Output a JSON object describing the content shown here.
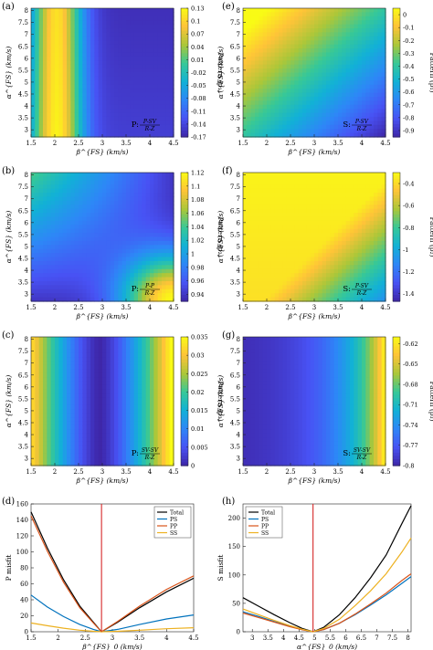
{
  "chart_data": [
    {
      "type": "heatmap",
      "panel_label": "(a)",
      "xlabel": "β^{FS} (km/s)",
      "ylabel": "α^{FS} (km/s)",
      "colorbar_label": "Pattern (p₁)",
      "annotation": {
        "prefix": "P:",
        "num": "P-SV",
        "den": "R-Z"
      },
      "xlim": [
        1.5,
        4.5
      ],
      "ylim": [
        2.7,
        8.1
      ],
      "xticks": [
        "1.5",
        "2",
        "2.5",
        "3",
        "3.5",
        "4",
        "4.5"
      ],
      "yticks": [
        "3",
        "3.5",
        "4",
        "4.5",
        "5",
        "5.5",
        "6",
        "6.5",
        "7",
        "7.5",
        "8"
      ],
      "colorbar_range": [
        -0.17,
        0.13
      ],
      "colorbar_ticks": [
        "0.13",
        "0.1",
        "0.07",
        "0.04",
        "0.01",
        "-0.02",
        "-0.05",
        "-0.08",
        "-0.11",
        "-0.14",
        "-0.17"
      ]
    },
    {
      "type": "heatmap",
      "panel_label": "(e)",
      "xlabel": "β^{FS} (km/s)",
      "ylabel": "α^{FS} (km/s)",
      "colorbar_label": "Pattern (p₁)",
      "annotation": {
        "prefix": "S:",
        "num": "P-SV",
        "den": "R-Z"
      },
      "xlim": [
        1.5,
        4.5
      ],
      "ylim": [
        2.7,
        8.1
      ],
      "xticks": [
        "1.5",
        "2",
        "2.5",
        "3",
        "3.5",
        "4",
        "4.5"
      ],
      "yticks": [
        "3",
        "3.5",
        "4",
        "4.5",
        "5",
        "5.5",
        "6",
        "6.5",
        "7",
        "7.5",
        "8"
      ],
      "colorbar_range": [
        -0.95,
        0.05
      ],
      "colorbar_ticks": [
        "0",
        "-0.1",
        "-0.2",
        "-0.3",
        "-0.4",
        "-0.5",
        "-0.6",
        "-0.7",
        "-0.8",
        "-0.9"
      ]
    },
    {
      "type": "heatmap",
      "panel_label": "(b)",
      "xlabel": "β^{FS} (km/s)",
      "ylabel": "α^{FS} (km/s)",
      "colorbar_label": "Pattern (p₂)",
      "annotation": {
        "prefix": "P:",
        "num": "P-P",
        "den": "R-Z"
      },
      "xlim": [
        1.5,
        4.5
      ],
      "ylim": [
        2.7,
        8.1
      ],
      "xticks": [
        "1.5",
        "2",
        "2.5",
        "3",
        "3.5",
        "4",
        "4.5"
      ],
      "yticks": [
        "3",
        "3.5",
        "4",
        "4.5",
        "5",
        "5.5",
        "6",
        "6.5",
        "7",
        "7.5",
        "8"
      ],
      "colorbar_range": [
        0.93,
        1.12
      ],
      "colorbar_ticks": [
        "1.12",
        "1.1",
        "1.08",
        "1.06",
        "1.04",
        "1.02",
        "1",
        "0.98",
        "0.96",
        "0.94"
      ]
    },
    {
      "type": "heatmap",
      "panel_label": "(f)",
      "xlabel": "β^{FS} (km/s)",
      "ylabel": "α^{FS} (km/s)",
      "colorbar_label": "Pattern (p₂)",
      "annotation": {
        "prefix": "S:",
        "num": "P-SV",
        "den": "R-Z"
      },
      "xlim": [
        1.5,
        4.5
      ],
      "ylim": [
        2.7,
        8.1
      ],
      "xticks": [
        "1.5",
        "2",
        "2.5",
        "3",
        "3.5",
        "4",
        "4.5"
      ],
      "yticks": [
        "3",
        "3.5",
        "4",
        "4.5",
        "5",
        "5.5",
        "6",
        "6.5",
        "7",
        "7.5",
        "8"
      ],
      "colorbar_range": [
        -1.47,
        -0.3
      ],
      "colorbar_ticks": [
        "-0.4",
        "-0.6",
        "-0.8",
        "-1",
        "-1.2",
        "-1.4"
      ]
    },
    {
      "type": "heatmap",
      "panel_label": "(c)",
      "xlabel": "β^{FS} (km/s)",
      "ylabel": "α^{FS} (km/s)",
      "colorbar_label": "Pattern (p₃)",
      "annotation": {
        "prefix": "P:",
        "num": "SV-SV",
        "den": "R-Z"
      },
      "xlim": [
        1.5,
        4.5
      ],
      "ylim": [
        2.7,
        8.1
      ],
      "xticks": [
        "1.5",
        "2",
        "2.5",
        "3",
        "3.5",
        "4",
        "4.5"
      ],
      "yticks": [
        "3",
        "3.5",
        "4",
        "4.5",
        "5",
        "5.5",
        "6",
        "6.5",
        "7",
        "7.5",
        "8"
      ],
      "colorbar_range": [
        0,
        0.035
      ],
      "colorbar_ticks": [
        "0.035",
        "0.03",
        "0.025",
        "0.02",
        "0.015",
        "0.01",
        "0.005",
        "0"
      ]
    },
    {
      "type": "heatmap",
      "panel_label": "(g)",
      "xlabel": "β^{FS} (km/s)",
      "ylabel": "α^{FS} (km/s)",
      "colorbar_label": "Pattern (p₃)",
      "annotation": {
        "prefix": "S:",
        "num": "SV-SV",
        "den": "R-Z"
      },
      "xlim": [
        1.5,
        4.5
      ],
      "ylim": [
        2.7,
        8.1
      ],
      "xticks": [
        "1.5",
        "2",
        "2.5",
        "3",
        "3.5",
        "4",
        "4.5"
      ],
      "yticks": [
        "3",
        "3.5",
        "4",
        "4.5",
        "5",
        "5.5",
        "6",
        "6.5",
        "7",
        "7.5",
        "8"
      ],
      "colorbar_range": [
        -0.8,
        -0.61
      ],
      "colorbar_ticks": [
        "-0.62",
        "-0.65",
        "-0.68",
        "-0.71",
        "-0.74",
        "-0.77",
        "-0.8"
      ]
    },
    {
      "type": "line",
      "panel_label": "(d)",
      "xlabel": "β^{FS}_0 (km/s)",
      "ylabel": "P misfit",
      "xlim": [
        1.5,
        4.5
      ],
      "ylim": [
        0,
        160
      ],
      "xticks": [
        "1.5",
        "2",
        "2.5",
        "3",
        "3.5",
        "4",
        "4.5"
      ],
      "yticks": [
        "0",
        "20",
        "40",
        "60",
        "80",
        "100",
        "120",
        "140",
        "160"
      ],
      "vline": 2.8,
      "legend_position": "top-right",
      "legend": [
        "Total",
        "PS",
        "PP",
        "SS"
      ],
      "series": [
        {
          "name": "Total",
          "color": "#000000",
          "x": [
            1.5,
            1.8,
            2.1,
            2.4,
            2.65,
            2.8,
            3.1,
            3.5,
            4.0,
            4.5
          ],
          "y": [
            150,
            105,
            65,
            32,
            12,
            0,
            12,
            30,
            50,
            67
          ]
        },
        {
          "name": "PS",
          "color": "#0072BD",
          "x": [
            1.5,
            1.8,
            2.1,
            2.4,
            2.65,
            2.8,
            3.1,
            3.5,
            4.0,
            4.5
          ],
          "y": [
            46,
            31,
            19,
            9,
            3,
            0,
            3,
            9,
            16,
            21
          ]
        },
        {
          "name": "PP",
          "color": "#D95319",
          "x": [
            1.5,
            1.8,
            2.1,
            2.4,
            2.65,
            2.8,
            3.1,
            3.5,
            4.0,
            4.5
          ],
          "y": [
            145,
            101,
            62,
            30,
            11,
            0,
            13,
            32,
            53,
            70
          ]
        },
        {
          "name": "SS",
          "color": "#EDB120",
          "x": [
            1.5,
            1.8,
            2.1,
            2.4,
            2.65,
            2.8,
            3.1,
            3.5,
            4.0,
            4.5
          ],
          "y": [
            11,
            7.5,
            4.5,
            2,
            0.6,
            0,
            0.6,
            2,
            3.8,
            5
          ]
        }
      ]
    },
    {
      "type": "line",
      "panel_label": "(h)",
      "xlabel": "α^{FS}_0 (km/s)",
      "ylabel": "S misfit",
      "xlim": [
        2.7,
        8.1
      ],
      "ylim": [
        0,
        225
      ],
      "xticks": [
        "3",
        "3.5",
        "4",
        "4.5",
        "5",
        "5.5",
        "6",
        "6.5",
        "7",
        "7.5",
        "8"
      ],
      "yticks": [
        "0",
        "50",
        "100",
        "150",
        "200"
      ],
      "vline": 4.95,
      "legend_position": "top-left",
      "legend": [
        "Total",
        "PS",
        "PP",
        "SS"
      ],
      "series": [
        {
          "name": "Total",
          "color": "#000000",
          "x": [
            2.7,
            3.2,
            3.7,
            4.2,
            4.6,
            4.95,
            5.3,
            5.8,
            6.3,
            6.8,
            7.3,
            7.8,
            8.1
          ],
          "y": [
            60,
            45,
            30,
            16,
            6,
            0,
            8,
            30,
            60,
            95,
            135,
            190,
            222
          ]
        },
        {
          "name": "PS",
          "color": "#0072BD",
          "x": [
            2.7,
            3.2,
            3.7,
            4.2,
            4.6,
            4.95,
            5.3,
            5.8,
            6.3,
            6.8,
            7.3,
            7.8,
            8.1
          ],
          "y": [
            35,
            27,
            18,
            10,
            4,
            0,
            4,
            15,
            30,
            47,
            65,
            85,
            97
          ]
        },
        {
          "name": "PP",
          "color": "#D95319",
          "x": [
            2.7,
            3.2,
            3.7,
            4.2,
            4.6,
            4.95,
            5.3,
            5.8,
            6.3,
            6.8,
            7.3,
            7.8,
            8.1
          ],
          "y": [
            33,
            25,
            17,
            9,
            3.5,
            0,
            4,
            15,
            31,
            49,
            68,
            90,
            102
          ]
        },
        {
          "name": "SS",
          "color": "#EDB120",
          "x": [
            2.7,
            3.2,
            3.7,
            4.2,
            4.6,
            4.95,
            5.3,
            5.8,
            6.3,
            6.8,
            7.3,
            7.8,
            8.1
          ],
          "y": [
            40,
            30,
            20,
            11,
            4.5,
            0,
            6,
            22,
            46,
            72,
            102,
            140,
            165
          ]
        }
      ]
    }
  ]
}
